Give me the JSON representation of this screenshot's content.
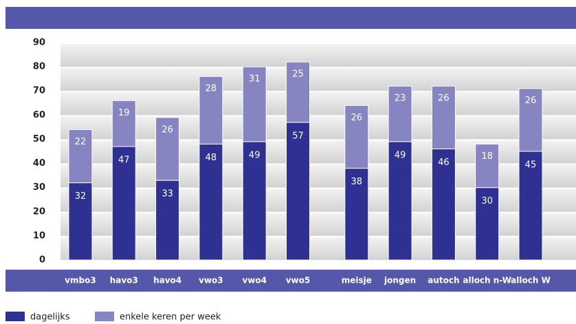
{
  "chart_data": {
    "type": "stacked_bar",
    "categories": [
      "vmbo3",
      "havo3",
      "havo4",
      "vwo3",
      "vwo4",
      "vwo5",
      "meisje",
      "jongen",
      "autoch",
      "alloch n-W",
      "alloch W"
    ],
    "series": [
      {
        "name": "dagelijks",
        "color": "#2e3192",
        "values": [
          32,
          47,
          33,
          48,
          49,
          57,
          38,
          49,
          46,
          30,
          45
        ]
      },
      {
        "name": "enkele keren per week",
        "color": "#8784c2",
        "values": [
          22,
          19,
          26,
          28,
          31,
          25,
          26,
          23,
          26,
          18,
          26
        ]
      }
    ],
    "ylim": [
      0,
      90
    ],
    "yticks": [
      0,
      10,
      20,
      30,
      40,
      50,
      60,
      70,
      80,
      90
    ],
    "grid": true,
    "legend": "bottom-left"
  }
}
